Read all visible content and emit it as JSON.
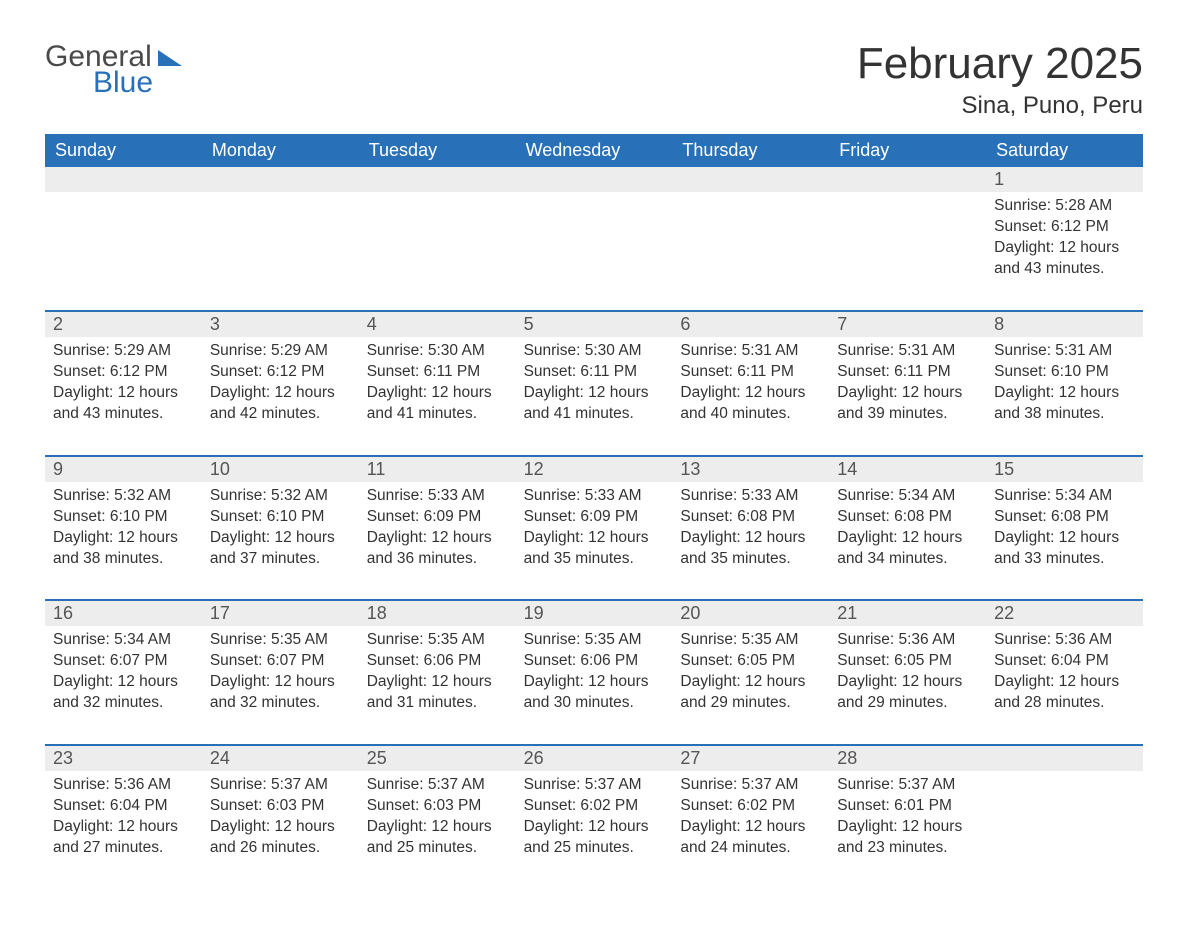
{
  "logo": {
    "word1": "General",
    "word2": "Blue"
  },
  "title": "February 2025",
  "location": "Sina, Puno, Peru",
  "colors": {
    "brand_blue": "#2870b8",
    "header_bg": "#2870b8",
    "header_text": "#ffffff",
    "daynum_bg": "#ededed",
    "body_text": "#333333",
    "page_bg": "#ffffff"
  },
  "day_headers": [
    "Sunday",
    "Monday",
    "Tuesday",
    "Wednesday",
    "Thursday",
    "Friday",
    "Saturday"
  ],
  "weeks": [
    [
      null,
      null,
      null,
      null,
      null,
      null,
      {
        "n": "1",
        "sunrise": "5:28 AM",
        "sunset": "6:12 PM",
        "daylight": "12 hours and 43 minutes."
      }
    ],
    [
      {
        "n": "2",
        "sunrise": "5:29 AM",
        "sunset": "6:12 PM",
        "daylight": "12 hours and 43 minutes."
      },
      {
        "n": "3",
        "sunrise": "5:29 AM",
        "sunset": "6:12 PM",
        "daylight": "12 hours and 42 minutes."
      },
      {
        "n": "4",
        "sunrise": "5:30 AM",
        "sunset": "6:11 PM",
        "daylight": "12 hours and 41 minutes."
      },
      {
        "n": "5",
        "sunrise": "5:30 AM",
        "sunset": "6:11 PM",
        "daylight": "12 hours and 41 minutes."
      },
      {
        "n": "6",
        "sunrise": "5:31 AM",
        "sunset": "6:11 PM",
        "daylight": "12 hours and 40 minutes."
      },
      {
        "n": "7",
        "sunrise": "5:31 AM",
        "sunset": "6:11 PM",
        "daylight": "12 hours and 39 minutes."
      },
      {
        "n": "8",
        "sunrise": "5:31 AM",
        "sunset": "6:10 PM",
        "daylight": "12 hours and 38 minutes."
      }
    ],
    [
      {
        "n": "9",
        "sunrise": "5:32 AM",
        "sunset": "6:10 PM",
        "daylight": "12 hours and 38 minutes."
      },
      {
        "n": "10",
        "sunrise": "5:32 AM",
        "sunset": "6:10 PM",
        "daylight": "12 hours and 37 minutes."
      },
      {
        "n": "11",
        "sunrise": "5:33 AM",
        "sunset": "6:09 PM",
        "daylight": "12 hours and 36 minutes."
      },
      {
        "n": "12",
        "sunrise": "5:33 AM",
        "sunset": "6:09 PM",
        "daylight": "12 hours and 35 minutes."
      },
      {
        "n": "13",
        "sunrise": "5:33 AM",
        "sunset": "6:08 PM",
        "daylight": "12 hours and 35 minutes."
      },
      {
        "n": "14",
        "sunrise": "5:34 AM",
        "sunset": "6:08 PM",
        "daylight": "12 hours and 34 minutes."
      },
      {
        "n": "15",
        "sunrise": "5:34 AM",
        "sunset": "6:08 PM",
        "daylight": "12 hours and 33 minutes."
      }
    ],
    [
      {
        "n": "16",
        "sunrise": "5:34 AM",
        "sunset": "6:07 PM",
        "daylight": "12 hours and 32 minutes."
      },
      {
        "n": "17",
        "sunrise": "5:35 AM",
        "sunset": "6:07 PM",
        "daylight": "12 hours and 32 minutes."
      },
      {
        "n": "18",
        "sunrise": "5:35 AM",
        "sunset": "6:06 PM",
        "daylight": "12 hours and 31 minutes."
      },
      {
        "n": "19",
        "sunrise": "5:35 AM",
        "sunset": "6:06 PM",
        "daylight": "12 hours and 30 minutes."
      },
      {
        "n": "20",
        "sunrise": "5:35 AM",
        "sunset": "6:05 PM",
        "daylight": "12 hours and 29 minutes."
      },
      {
        "n": "21",
        "sunrise": "5:36 AM",
        "sunset": "6:05 PM",
        "daylight": "12 hours and 29 minutes."
      },
      {
        "n": "22",
        "sunrise": "5:36 AM",
        "sunset": "6:04 PM",
        "daylight": "12 hours and 28 minutes."
      }
    ],
    [
      {
        "n": "23",
        "sunrise": "5:36 AM",
        "sunset": "6:04 PM",
        "daylight": "12 hours and 27 minutes."
      },
      {
        "n": "24",
        "sunrise": "5:37 AM",
        "sunset": "6:03 PM",
        "daylight": "12 hours and 26 minutes."
      },
      {
        "n": "25",
        "sunrise": "5:37 AM",
        "sunset": "6:03 PM",
        "daylight": "12 hours and 25 minutes."
      },
      {
        "n": "26",
        "sunrise": "5:37 AM",
        "sunset": "6:02 PM",
        "daylight": "12 hours and 25 minutes."
      },
      {
        "n": "27",
        "sunrise": "5:37 AM",
        "sunset": "6:02 PM",
        "daylight": "12 hours and 24 minutes."
      },
      {
        "n": "28",
        "sunrise": "5:37 AM",
        "sunset": "6:01 PM",
        "daylight": "12 hours and 23 minutes."
      },
      null
    ]
  ],
  "labels": {
    "sunrise": "Sunrise: ",
    "sunset": "Sunset: ",
    "daylight": "Daylight: "
  }
}
